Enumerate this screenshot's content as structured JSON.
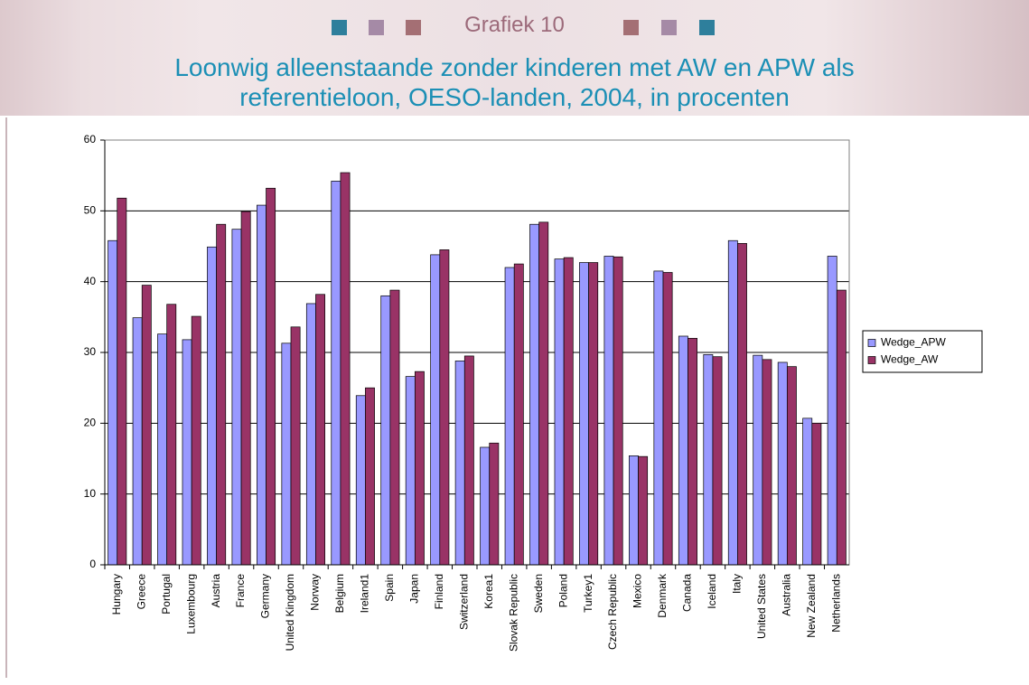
{
  "chart_data": {
    "type": "bar",
    "title": "Grafiek 10",
    "subtitle": "Loonwig alleenstaande zonder kinderen met AW en APW als referentieloon, OESO-landen, 2004, in procenten",
    "categories": [
      "Hungary",
      "Greece",
      "Portugal",
      "Luxembourg",
      "Austria",
      "France",
      "Germany",
      "United Kingdom",
      "Norway",
      "Belgium",
      "Ireland1",
      "Spain",
      "Japan",
      "Finland",
      "Switzerland",
      "Korea1",
      "Slovak Republic",
      "Sweden",
      "Poland",
      "Turkey1",
      "Czech Republic",
      "Mexico",
      "Denmark",
      "Canada",
      "Iceland",
      "Italy",
      "United States",
      "Australia",
      "New Zealand",
      "Netherlands"
    ],
    "series": [
      {
        "name": "Wedge_APW",
        "color": "#9999ff",
        "values": [
          45.8,
          34.9,
          32.6,
          31.8,
          44.9,
          47.4,
          50.8,
          31.3,
          36.9,
          54.2,
          23.9,
          38.0,
          26.6,
          43.8,
          28.8,
          16.6,
          42.0,
          48.1,
          43.2,
          42.7,
          43.6,
          15.4,
          41.5,
          32.3,
          29.7,
          45.8,
          29.6,
          28.6,
          20.7,
          43.6
        ]
      },
      {
        "name": "Wedge_AW",
        "color": "#993366",
        "values": [
          51.8,
          39.5,
          36.8,
          35.1,
          48.1,
          49.9,
          53.2,
          33.6,
          38.2,
          55.4,
          25.0,
          38.8,
          27.3,
          44.5,
          29.5,
          17.2,
          42.5,
          48.4,
          43.4,
          42.7,
          43.5,
          15.3,
          41.3,
          32.0,
          29.4,
          45.4,
          29.0,
          28.0,
          20.0,
          38.8
        ]
      }
    ],
    "ylim": [
      0,
      60
    ],
    "yticks": [
      0,
      10,
      20,
      30,
      40,
      50,
      60
    ],
    "grid": true,
    "legend": "right"
  }
}
